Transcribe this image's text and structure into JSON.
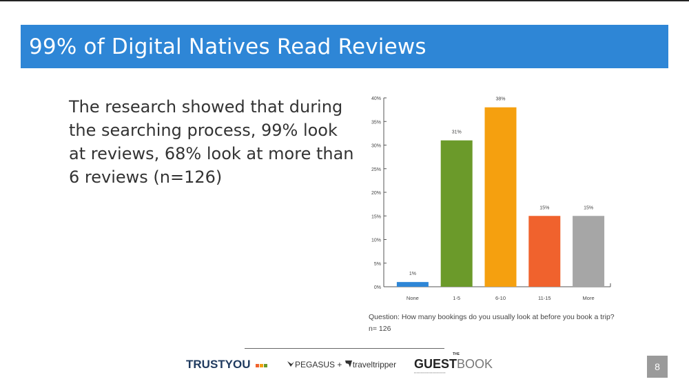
{
  "slide": {
    "title": "99% of Digital Natives Read Reviews",
    "body": "The research showed that during the searching process, 99% look at reviews, 68% look at more than 6 reviews (n=126)",
    "caption_question": "Question: How many bookings do you usually look at before you book a trip?",
    "caption_n": "n= 126",
    "page_number": "8"
  },
  "footer": {
    "trustyou": "TRUSTYOU",
    "pegasus": "PEGASUS",
    "plus": "+",
    "traveltripper": "traveltripper",
    "guestbook_bold": "GUEST",
    "guestbook_light": "BOOK",
    "guestbook_the": "THE"
  },
  "colors": {
    "title_bar": "#2e86d6",
    "bars": [
      "#2e86d6",
      "#6b9a2a",
      "#f5a00f",
      "#f0622d",
      "#a6a6a6"
    ]
  },
  "chart_data": {
    "type": "bar",
    "categories": [
      "None",
      "1-5",
      "6-10",
      "11-15",
      "More"
    ],
    "values": [
      1,
      31,
      38,
      15,
      15
    ],
    "value_labels": [
      "1%",
      "31%",
      "38%",
      "15%",
      "15%"
    ],
    "ylim": [
      0,
      40
    ],
    "yticks": [
      "0%",
      "5%",
      "10%",
      "15%",
      "20%",
      "25%",
      "30%",
      "35%",
      "40%"
    ],
    "grid": false,
    "legend": "none"
  }
}
